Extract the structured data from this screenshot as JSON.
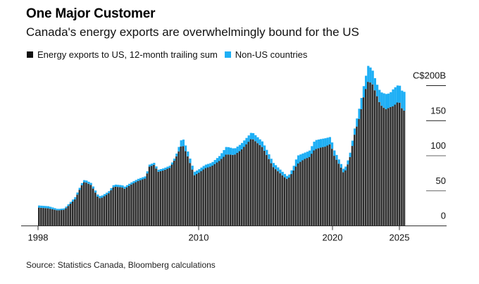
{
  "header": {
    "title": "One Major Customer",
    "subtitle": "Canada's energy exports are overwhelmingly bound for the US"
  },
  "legend": [
    {
      "label": "Energy exports to US, 12-month trailing sum",
      "color": "#222222"
    },
    {
      "label": "Non-US countries",
      "color": "#1EAFF5"
    }
  ],
  "footer": {
    "source": "Source: Statistics Canada, Bloomberg calculations"
  },
  "chart_data": {
    "type": "bar",
    "stacked": true,
    "title": "One Major Customer",
    "subtitle": "Canada's energy exports are overwhelmingly bound for the US",
    "xlabel": "",
    "ylabel": "C$ billions",
    "x_range": [
      1998.0,
      2025.3
    ],
    "ylim": [
      0,
      200
    ],
    "y_ticks": [
      {
        "value": 200,
        "label": "C$200B"
      },
      {
        "value": 150,
        "label": "150"
      },
      {
        "value": 100,
        "label": "100"
      },
      {
        "value": 50,
        "label": "50"
      },
      {
        "value": 0,
        "label": "0"
      }
    ],
    "x_ticks": [
      {
        "value": 1998,
        "label": "1998"
      },
      {
        "value": 2010,
        "label": "2010"
      },
      {
        "value": 2020,
        "label": "2020"
      },
      {
        "value": 2025,
        "label": "2025"
      }
    ],
    "grid": true,
    "legend_position": "top-left",
    "x": [
      1998.0,
      1998.7,
      1999.4,
      1999.9,
      2000.7,
      2001.2,
      2001.4,
      2001.9,
      2002.4,
      2002.6,
      2003.2,
      2003.6,
      2004.2,
      2004.4,
      2004.9,
      2005.4,
      2006.0,
      2006.2,
      2006.6,
      2006.9,
      2007.3,
      2007.8,
      2008.2,
      2008.7,
      2009.1,
      2009.6,
      2009.9,
      2010.4,
      2010.9,
      2011.5,
      2012.0,
      2012.6,
      2013.1,
      2013.9,
      2014.7,
      2015.5,
      2016.3,
      2016.6,
      2017.0,
      2017.3,
      2017.8,
      2018.2,
      2018.6,
      2019.1,
      2019.4,
      2019.8,
      2020.0,
      2020.6,
      2020.8,
      2021.2,
      2021.6,
      2022.0,
      2022.3,
      2022.6,
      2022.9,
      2023.2,
      2023.5,
      2023.9,
      2024.2,
      2024.5,
      2024.9,
      2025.1,
      2025.3
    ],
    "series": [
      {
        "name": "Energy exports to US, 12-month trailing sum",
        "color": "#2b2b2b",
        "values": [
          26,
          25,
          22,
          23,
          38,
          58,
          63,
          58,
          41,
          39,
          46,
          56,
          55,
          53,
          59,
          64,
          68,
          84,
          87,
          77,
          79,
          83,
          96,
          117,
          100,
          72,
          75,
          82,
          85,
          93,
          102,
          101,
          108,
          125,
          112,
          84,
          70,
          66,
          78,
          88,
          95,
          98,
          109,
          112,
          113,
          117,
          102,
          82,
          74,
          94,
          132,
          158,
          188,
          206,
          203,
          188,
          173,
          166,
          169,
          171,
          178,
          168,
          164
        ]
      },
      {
        "name": "Non-US countries",
        "color": "#1EAFF5",
        "values": [
          3,
          3,
          2,
          2,
          3,
          3,
          3,
          3,
          3,
          3,
          3,
          3,
          3,
          3,
          3,
          3,
          3,
          3,
          3,
          3,
          3,
          3,
          3,
          10,
          7,
          5,
          5,
          5,
          5,
          7,
          11,
          9,
          9,
          9,
          8,
          6,
          5,
          4,
          6,
          12,
          9,
          9,
          13,
          12,
          12,
          10,
          8,
          5,
          5,
          6,
          9,
          16,
          16,
          23,
          20,
          16,
          18,
          22,
          20,
          25,
          24,
          25,
          27
        ]
      }
    ]
  }
}
